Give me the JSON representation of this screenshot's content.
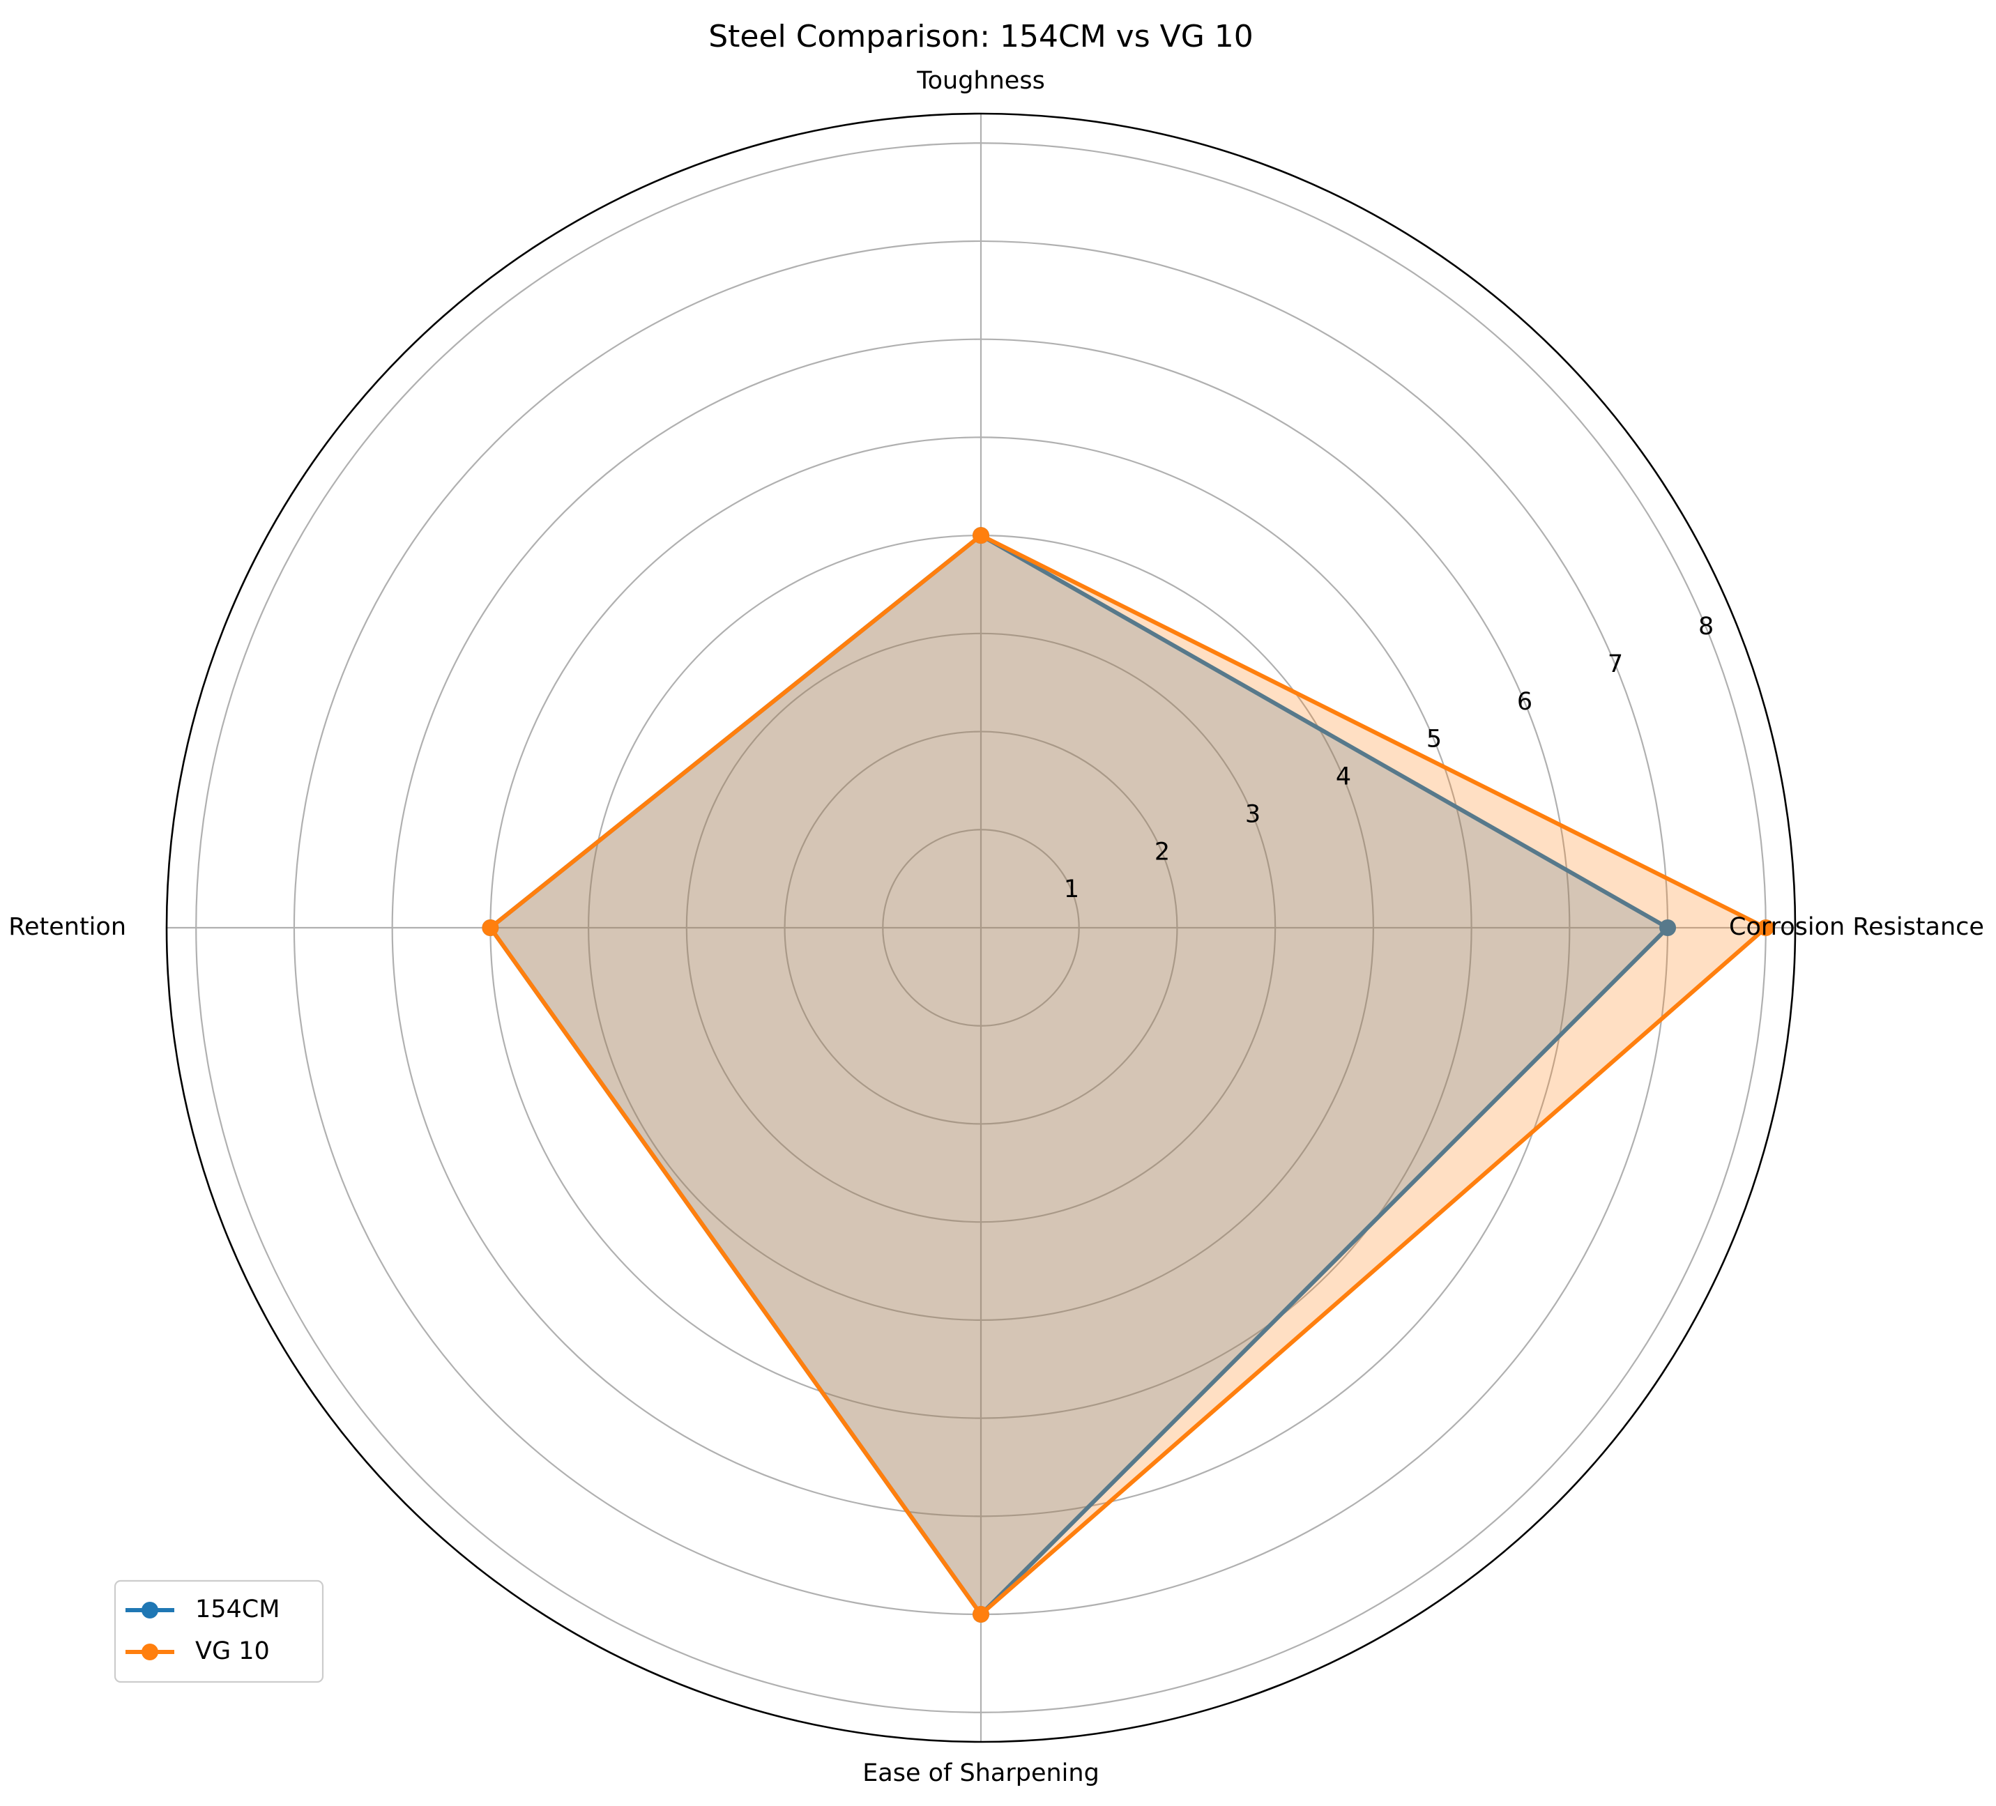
{
  "chart_data": {
    "type": "radar",
    "title": "Steel Comparison: 154CM vs VG 10",
    "categories": [
      "Corrosion Resistance",
      "Toughness",
      "Edge Retention",
      "Ease of Sharpening"
    ],
    "rlim": [
      0,
      8.3
    ],
    "rticks": [
      1,
      2,
      3,
      4,
      5,
      6,
      7,
      8
    ],
    "rtick_labels": [
      "1",
      "2",
      "3",
      "4",
      "5",
      "6",
      "7",
      "8"
    ],
    "grid": true,
    "legend_position": "lower-left",
    "series": [
      {
        "name": "154CM",
        "values": [
          7,
          4,
          5,
          7
        ],
        "color": "#1f77b4"
      },
      {
        "name": "VG 10",
        "values": [
          8,
          4,
          5,
          7
        ],
        "color": "#ff7f0e"
      }
    ]
  }
}
